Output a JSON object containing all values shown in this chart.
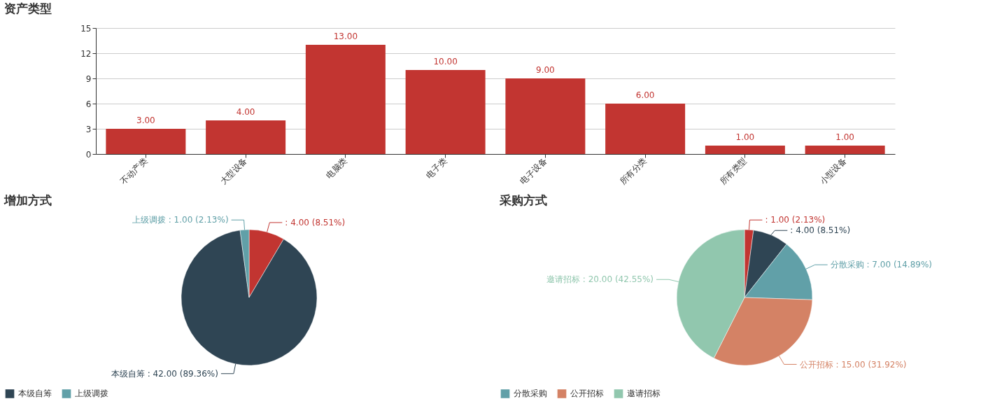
{
  "chart_data": [
    {
      "type": "bar",
      "title": "资产类型",
      "categories": [
        "不动产类",
        "大型设备",
        "电脑类",
        "电子类",
        "电子设备",
        "所有分类",
        "所有类型",
        "小型设备"
      ],
      "values": [
        3,
        4,
        13,
        10,
        9,
        6,
        1,
        1
      ],
      "value_labels": [
        "3.00",
        "4.00",
        "13.00",
        "10.00",
        "9.00",
        "6.00",
        "1.00",
        "1.00"
      ],
      "color": "#c23531",
      "ylim": [
        0,
        15
      ],
      "yticks": [
        0,
        3,
        6,
        9,
        12,
        15
      ],
      "grid": "y"
    },
    {
      "type": "pie",
      "title": "增加方式",
      "categories": [
        null,
        "本级自筹",
        "上级调拨"
      ],
      "values": [
        4,
        42,
        1
      ],
      "colors": [
        "#c23531",
        "#2f4554",
        "#61a0a8"
      ],
      "value_labels": [
        ": 4.00 (8.51%)",
        "本级自筹 : 42.00 (89.36%)",
        "上级调拨 : 1.00 (2.13%)"
      ],
      "legend": "bottom"
    },
    {
      "type": "pie",
      "title": "采购方式",
      "categories": [
        null,
        null,
        "分散采购",
        "公开招标",
        "邀请招标"
      ],
      "values": [
        1,
        4,
        7,
        15,
        20
      ],
      "colors": [
        "#c23531",
        "#2f4554",
        "#61a0a8",
        "#d48265",
        "#91c7ae"
      ],
      "value_labels": [
        ": 1.00 (2.13%)",
        ": 4.00 (8.51%)",
        "分散采购 : 7.00 (14.89%)",
        "公开招标 : 15.00 (31.92%)",
        "邀请招标 : 20.00 (42.55%)"
      ],
      "legend": "bottom"
    }
  ]
}
